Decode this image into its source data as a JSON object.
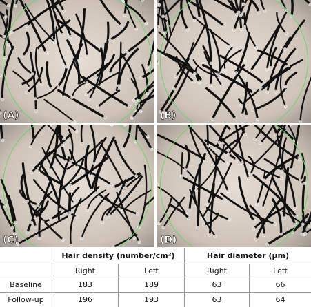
{
  "panels": [
    {
      "label": "(A)"
    },
    {
      "label": "(B)"
    },
    {
      "label": "(C)"
    },
    {
      "label": "(D)"
    }
  ],
  "table": {
    "groups": [
      "Hair density (number/cm²)",
      "Hair diameter (μm)"
    ],
    "subheaders": [
      "Right",
      "Left",
      "Right",
      "Left"
    ],
    "rows": [
      [
        "Baseline",
        183,
        189,
        63,
        66
      ],
      [
        "Follow-up",
        196,
        193,
        63,
        64
      ]
    ]
  }
}
